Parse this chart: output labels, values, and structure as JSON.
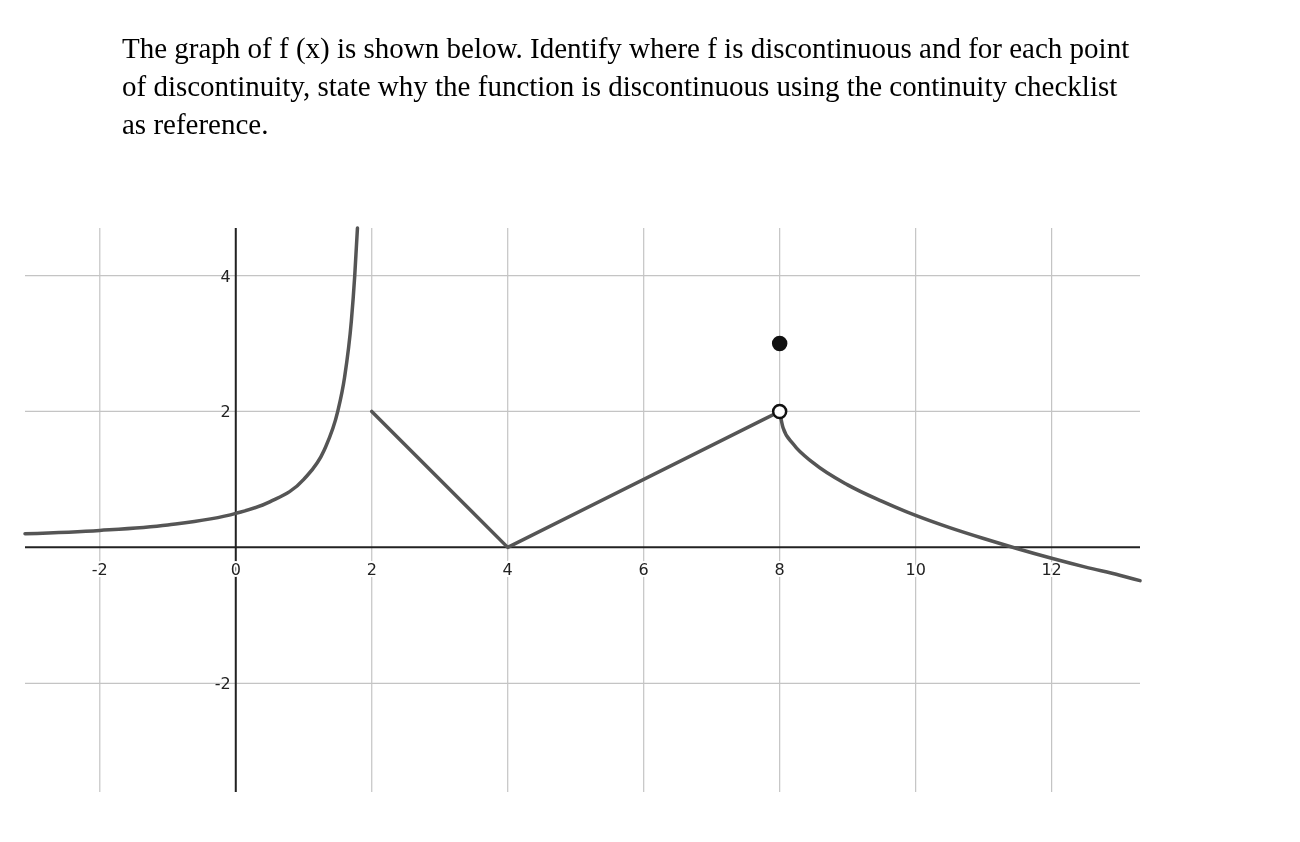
{
  "chart_data": {
    "type": "line",
    "title": "The graph of f (x) is shown below.  Identify where f is discontinuous and for each point of discontinuity, state why the function is discontinuous using the continuity checklist as reference.",
    "xlim": [
      -3.1,
      13.3
    ],
    "ylim": [
      -3.6,
      4.7
    ],
    "xticks": [
      -2,
      0,
      2,
      4,
      6,
      8,
      10,
      12
    ],
    "yticks": [
      -2,
      2,
      4
    ],
    "grid": true,
    "series": [
      {
        "color": "#555555",
        "x": [
          -3.1,
          -2,
          -1,
          0,
          0.5,
          1,
          1.3,
          1.5,
          1.6,
          1.7,
          1.75,
          1.79
        ],
        "values": [
          0.2,
          0.25,
          0.33,
          0.5,
          0.67,
          1,
          1.43,
          2,
          2.5,
          3.33,
          4,
          4.7
        ]
      },
      {
        "color": "#555555",
        "x": [
          2,
          4,
          8
        ],
        "values": [
          2,
          0,
          2
        ]
      },
      {
        "color": "#555555",
        "x": [
          8,
          8.05,
          8.2,
          8.5,
          9,
          9.5,
          10,
          10.5,
          11,
          11.5,
          12,
          12.5,
          13,
          13.3
        ],
        "values": [
          2,
          1.76,
          1.52,
          1.24,
          0.92,
          0.68,
          0.47,
          0.29,
          0.13,
          -0.02,
          -0.16,
          -0.29,
          -0.41,
          -0.49
        ]
      },
      {
        "type": "scatter",
        "marker": "circle",
        "color": "#ffffff",
        "x": [
          8
        ],
        "values": [
          2
        ]
      },
      {
        "type": "scatter",
        "marker": "circle",
        "color": "#111111",
        "x": [
          8
        ],
        "values": [
          3
        ]
      }
    ]
  }
}
